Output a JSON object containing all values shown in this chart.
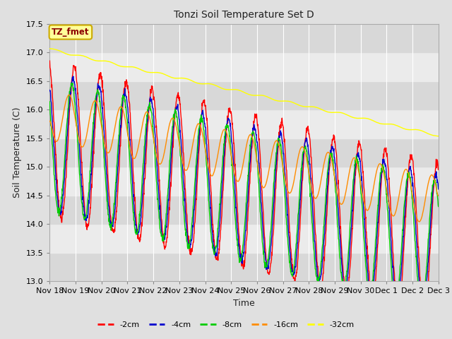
{
  "title": "Tonzi Soil Temperature Set D",
  "xlabel": "Time",
  "ylabel": "Soil Temperature (C)",
  "ylim": [
    13.0,
    17.5
  ],
  "annotation_text": "TZ_fmet",
  "annotation_color": "#8B0000",
  "annotation_bg": "#FFFF99",
  "annotation_border": "#CCAA00",
  "series_labels": [
    "-2cm",
    "-4cm",
    "-8cm",
    "-16cm",
    "-32cm"
  ],
  "series_colors": [
    "#FF0000",
    "#0000CD",
    "#00CC00",
    "#FF8C00",
    "#FFFF00"
  ],
  "xtick_labels": [
    "Nov 18",
    "Nov 19",
    "Nov 20",
    "Nov 21",
    "Nov 22",
    "Nov 23",
    "Nov 24",
    "Nov 25",
    "Nov 26",
    "Nov 27",
    "Nov 28",
    "Nov 29",
    "Nov 30",
    "Dec 1",
    "Dec 2",
    "Dec 3"
  ],
  "bg_color": "#E0E0E0",
  "plot_bg_light": "#EBEBEB",
  "plot_bg_dark": "#D8D8D8",
  "grid_color": "#FFFFFF",
  "n_points": 1440,
  "n_days": 15
}
